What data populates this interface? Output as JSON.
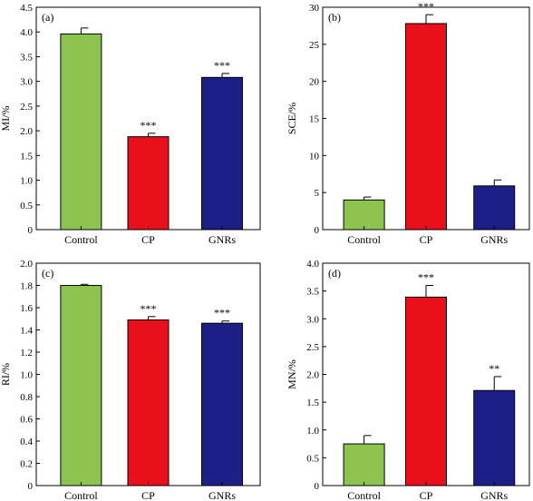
{
  "chart_data": [
    {
      "panel_label": "(a)",
      "type": "bar",
      "categories": [
        "Control",
        "CP",
        "GNRs"
      ],
      "values": [
        3.96,
        1.88,
        3.08
      ],
      "errors": [
        0.12,
        0.07,
        0.08
      ],
      "significance": [
        "",
        "***",
        "***"
      ],
      "colors": [
        "#8dc44f",
        "#e8101a",
        "#1c1f85"
      ],
      "ylabel": "MI/%",
      "ylim": [
        0,
        4.5
      ],
      "ticks": [
        "0",
        "0.5",
        "1.0",
        "1.5",
        "2.0",
        "2.5",
        "3.0",
        "3.5",
        "4.0",
        "4.5"
      ]
    },
    {
      "panel_label": "(b)",
      "type": "bar",
      "categories": [
        "Control",
        "CP",
        "GNRs"
      ],
      "values": [
        4.0,
        27.8,
        5.9
      ],
      "errors": [
        0.4,
        1.2,
        0.8
      ],
      "significance": [
        "",
        "***",
        ""
      ],
      "colors": [
        "#8dc44f",
        "#e8101a",
        "#1c1f85"
      ],
      "ylabel": "SCE/%",
      "ylim": [
        0,
        30
      ],
      "ticks": [
        "0",
        "5",
        "10",
        "15",
        "20",
        "25",
        "30"
      ]
    },
    {
      "panel_label": "(c)",
      "type": "bar",
      "categories": [
        "Control",
        "CP",
        "GNRs"
      ],
      "values": [
        1.8,
        1.49,
        1.46
      ],
      "errors": [
        0.01,
        0.03,
        0.02
      ],
      "significance": [
        "",
        "***",
        "***"
      ],
      "colors": [
        "#8dc44f",
        "#e8101a",
        "#1c1f85"
      ],
      "ylabel": "RI/%",
      "ylim": [
        0,
        2.0
      ],
      "ticks": [
        "0",
        "0.2",
        "0.4",
        "0.6",
        "0.8",
        "1.0",
        "1.2",
        "1.4",
        "1.6",
        "1.8",
        "2.0"
      ]
    },
    {
      "panel_label": "(d)",
      "type": "bar",
      "categories": [
        "Control",
        "CP",
        "GNRs"
      ],
      "values": [
        0.75,
        3.39,
        1.71
      ],
      "errors": [
        0.15,
        0.21,
        0.25
      ],
      "significance": [
        "",
        "***",
        "**"
      ],
      "colors": [
        "#8dc44f",
        "#e8101a",
        "#1c1f85"
      ],
      "ylabel": "MN/%",
      "ylim": [
        0,
        4.0
      ],
      "ticks": [
        "0",
        "0.5",
        "1.0",
        "1.5",
        "2.0",
        "2.5",
        "3.0",
        "3.5",
        "4.0"
      ]
    }
  ]
}
